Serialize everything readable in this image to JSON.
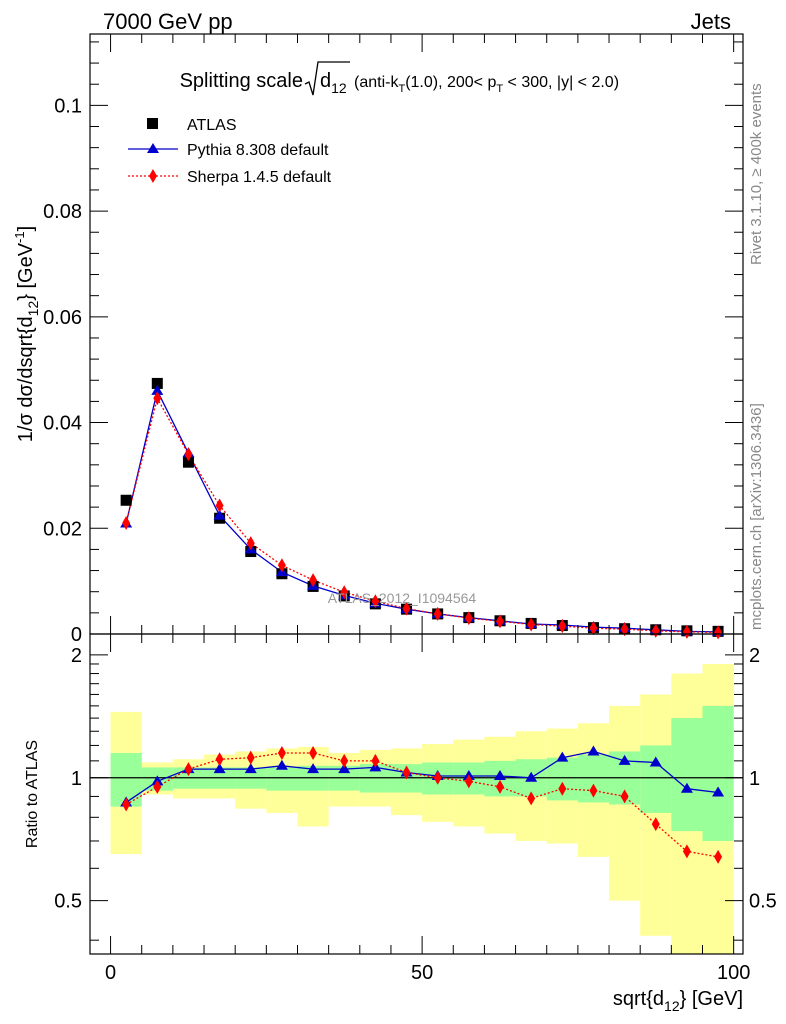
{
  "header": {
    "left": "7000 GeV pp",
    "right": "Jets"
  },
  "side_labels": {
    "rivet": "Rivet 3.1.10, ≥ 400k events",
    "mcplots": "mcplots.cern.ch [arXiv:1306.3436]"
  },
  "chart_data": [
    {
      "type": "scatter",
      "title": "Splitting scale √d₁₂ (anti-k_T(1.0), 200< p_T < 300, |y| < 2.0)",
      "title_parts": {
        "main": "Splitting scale",
        "sqrt_arg": "d",
        "sqrt_sub": "12",
        "details_pre": "(anti-k",
        "details_sub1": "T",
        "details_mid": "(1.0), 200< p",
        "details_sub2": "T",
        "details_post": " < 300, |y| < 2.0)"
      },
      "ylabel": "1/σ dσ/dsqrt{d_12} [GeV^-1]",
      "ylabel_parts": {
        "pre": "1/σ dσ/dsqrt{d",
        "sub": "12",
        "mid": "} [GeV",
        "sup": "-1",
        "post": "]"
      },
      "watermark": "ATLAS_2012_I1094564",
      "xlim": [
        -3.3,
        101.5
      ],
      "ylim": [
        0,
        0.1135
      ],
      "yticks": [
        0,
        0.02,
        0.04,
        0.06,
        0.08,
        0.1
      ],
      "ytick_labels": [
        "0",
        "0.02",
        "0.04",
        "0.06",
        "0.08",
        "0.1"
      ],
      "legend_position": "top-left",
      "x": [
        2.5,
        7.5,
        12.5,
        17.5,
        22.5,
        27.5,
        32.5,
        37.5,
        42.5,
        47.5,
        52.5,
        57.5,
        62.5,
        67.5,
        72.5,
        77.5,
        82.5,
        87.5,
        92.5,
        97.5
      ],
      "series": [
        {
          "name": "ATLAS",
          "color": "#000000",
          "marker": "square",
          "values": [
            0.0253,
            0.0474,
            0.0325,
            0.0219,
            0.0156,
            0.0114,
            0.009,
            0.0072,
            0.0057,
            0.0047,
            0.0038,
            0.0031,
            0.0025,
            0.002,
            0.0016,
            0.0012,
            0.001,
            0.0008,
            0.0006,
            0.0005
          ]
        },
        {
          "name": "Pythia 8.308 default",
          "color": "#0000cc",
          "marker": "triangle",
          "line": "solid",
          "values": [
            0.0209,
            0.046,
            0.0342,
            0.0224,
            0.016,
            0.0117,
            0.0091,
            0.0073,
            0.0058,
            0.0047,
            0.0038,
            0.0031,
            0.0025,
            0.0019,
            0.0017,
            0.0013,
            0.0011,
            0.0008,
            0.0005,
            0.0004
          ]
        },
        {
          "name": "Sherpa 1.4.5 default",
          "color": "#ff0000",
          "marker": "diamond",
          "line": "dotted",
          "values": [
            0.021,
            0.0446,
            0.034,
            0.0243,
            0.0172,
            0.013,
            0.0102,
            0.0079,
            0.0062,
            0.0048,
            0.0038,
            0.003,
            0.0024,
            0.0018,
            0.0015,
            0.0011,
            0.0009,
            0.0006,
            0.0004,
            0.0003
          ]
        }
      ]
    },
    {
      "type": "scatter",
      "ylabel": "Ratio to ATLAS",
      "xlabel": "sqrt{d_12} [GeV]",
      "xlabel_parts": {
        "pre": "sqrt{d",
        "sub": "12",
        "post": "} [GeV]"
      },
      "xlim": [
        -3.3,
        101.5
      ],
      "ylim": [
        0.37,
        2.25
      ],
      "xticks": [
        0,
        50,
        100
      ],
      "xtick_labels": [
        "0",
        "50",
        "100"
      ],
      "yticks": [
        0.5,
        1,
        2
      ],
      "ytick_labels": [
        "0.5",
        "1",
        "2"
      ],
      "reference_line": 1,
      "bin_edges": [
        0,
        5,
        10,
        15,
        20,
        25,
        30,
        35,
        40,
        45,
        50,
        55,
        60,
        65,
        70,
        75,
        80,
        85,
        90,
        95,
        100
      ],
      "band_stat": {
        "color": "#99ff99",
        "low": [
          0.85,
          0.93,
          0.94,
          0.94,
          0.94,
          0.93,
          0.93,
          0.93,
          0.92,
          0.92,
          0.91,
          0.91,
          0.9,
          0.9,
          0.88,
          0.87,
          0.86,
          0.82,
          0.74,
          0.7
        ],
        "high": [
          1.15,
          1.06,
          1.06,
          1.06,
          1.06,
          1.06,
          1.07,
          1.07,
          1.08,
          1.08,
          1.09,
          1.09,
          1.1,
          1.11,
          1.12,
          1.14,
          1.16,
          1.2,
          1.4,
          1.5
        ]
      },
      "band_total": {
        "color": "#ffff99",
        "low": [
          0.65,
          0.91,
          0.89,
          0.89,
          0.84,
          0.82,
          0.76,
          0.85,
          0.85,
          0.81,
          0.78,
          0.76,
          0.73,
          0.7,
          0.69,
          0.64,
          0.5,
          0.41,
          0.37,
          0.37
        ],
        "high": [
          1.45,
          1.09,
          1.11,
          1.14,
          1.16,
          1.18,
          1.19,
          1.15,
          1.17,
          1.18,
          1.21,
          1.24,
          1.26,
          1.3,
          1.32,
          1.36,
          1.5,
          1.6,
          1.8,
          1.9
        ]
      },
      "series": [
        {
          "name": "Pythia 8.308 default",
          "color": "#0000cc",
          "marker": "triangle",
          "line": "solid",
          "values": [
            0.87,
            0.98,
            1.05,
            1.05,
            1.05,
            1.07,
            1.05,
            1.05,
            1.06,
            1.03,
            1.01,
            1.01,
            1.01,
            1.0,
            1.12,
            1.16,
            1.1,
            1.09,
            0.94,
            0.92
          ]
        },
        {
          "name": "Sherpa 1.4.5 default",
          "color": "#ff0000",
          "marker": "diamond",
          "line": "dotted",
          "values": [
            0.86,
            0.95,
            1.05,
            1.11,
            1.12,
            1.15,
            1.15,
            1.1,
            1.1,
            1.03,
            1.0,
            0.98,
            0.95,
            0.89,
            0.94,
            0.93,
            0.9,
            0.77,
            0.66,
            0.64
          ]
        }
      ]
    }
  ]
}
